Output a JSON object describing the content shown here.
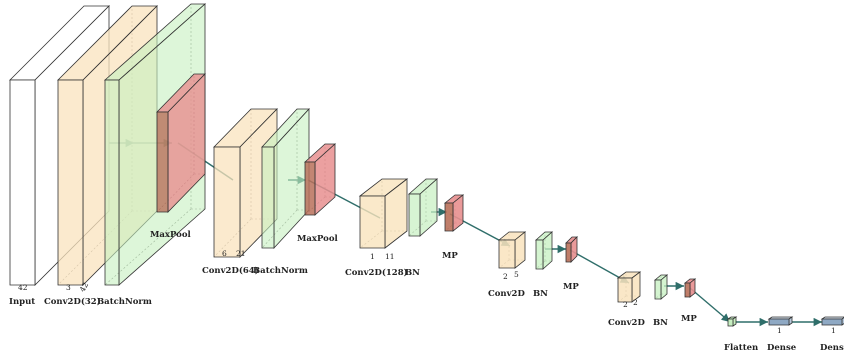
{
  "colors": {
    "input": "#ffffff",
    "conv": "#f9e3bd",
    "bn": "#c6f0c0",
    "pool": "#e88f8f",
    "pool_dark": "#b9705a",
    "edge": "#333333",
    "arrow": "#2f6e6a"
  },
  "labels": {
    "input": "Input",
    "conv1": "Conv2D(32)",
    "bn1": "BatchNorm",
    "pool1": "MaxPool",
    "conv2": "Conv2D(64)",
    "bn2": "BatchNorm",
    "pool2": "MaxPool",
    "conv3": "Conv2D(128)",
    "bn3": "BN",
    "pool3": "MP",
    "conv4": "Conv2D",
    "bn4": "BN",
    "pool4": "MP",
    "conv5": "Conv2D",
    "bn5": "BN",
    "pool5": "MP",
    "flatten": "Flatten",
    "dense1": "Dense",
    "dense2": "Dense"
  },
  "dims": {
    "input": "42",
    "conv1_a": "3",
    "conv1_b": "42",
    "conv2_a": "6",
    "conv2_b": "21",
    "conv3_a": "1",
    "conv3_b": "11",
    "conv4_a": "2",
    "conv4_b": "5",
    "conv5_a": "2",
    "conv5_b": "2",
    "dense1": "1",
    "dense2": "1"
  }
}
